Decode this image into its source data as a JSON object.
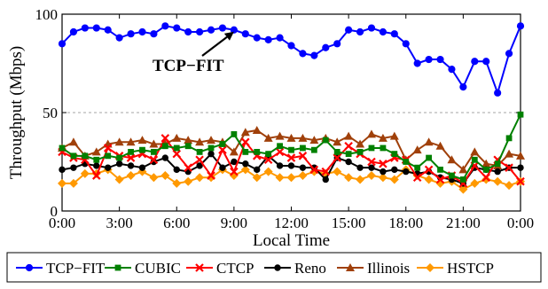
{
  "chart_data": {
    "type": "line",
    "xlabel": "Local Time",
    "ylabel": "Throughput (Mbps)",
    "xlim": [
      0,
      24
    ],
    "ylim": [
      0,
      100
    ],
    "x_ticks": [
      {
        "value": 0,
        "label": "0:00"
      },
      {
        "value": 3,
        "label": "3:00"
      },
      {
        "value": 6,
        "label": "6:00"
      },
      {
        "value": 9,
        "label": "9:00"
      },
      {
        "value": 12,
        "label": "12:00"
      },
      {
        "value": 15,
        "label": "15:00"
      },
      {
        "value": 18,
        "label": "18:00"
      },
      {
        "value": 21,
        "label": "21:00"
      },
      {
        "value": 24,
        "label": "0:00"
      }
    ],
    "y_ticks": [
      {
        "value": 0,
        "label": "0"
      },
      {
        "value": 50,
        "label": "50"
      },
      {
        "value": 100,
        "label": "100"
      }
    ],
    "grid": "y-dashed",
    "legend_placement": "bottom",
    "annotation": {
      "text": "TCP−FIT",
      "points_to": {
        "x": 9.0,
        "y": 92
      }
    },
    "x": [
      0.0,
      0.6,
      1.2,
      1.8,
      2.4,
      3.0,
      3.6,
      4.2,
      4.8,
      5.4,
      6.0,
      6.6,
      7.2,
      7.8,
      8.4,
      9.0,
      9.6,
      10.2,
      10.8,
      11.4,
      12.0,
      12.6,
      13.2,
      13.8,
      14.4,
      15.0,
      15.6,
      16.2,
      16.8,
      17.4,
      18.0,
      18.6,
      19.2,
      19.8,
      20.4,
      21.0,
      21.6,
      22.2,
      22.8,
      23.4,
      24.0
    ],
    "series": [
      {
        "name": "TCP−FIT",
        "color": "#0000ff",
        "marker": "circle",
        "values": [
          85,
          91,
          93,
          93,
          92,
          88,
          90,
          91,
          90,
          94,
          93,
          91,
          91,
          92,
          93,
          92,
          90,
          88,
          87,
          88,
          84,
          80,
          79,
          83,
          85,
          92,
          91,
          93,
          91,
          90,
          85,
          75,
          77,
          77,
          72,
          63,
          76,
          76,
          60,
          80,
          94
        ]
      },
      {
        "name": "CUBIC",
        "color": "#008000",
        "marker": "square",
        "values": [
          32,
          28,
          28,
          26,
          28,
          27,
          30,
          31,
          30,
          33,
          32,
          33,
          30,
          32,
          34,
          39,
          30,
          30,
          29,
          33,
          31,
          32,
          31,
          36,
          30,
          29,
          30,
          32,
          32,
          29,
          25,
          22,
          27,
          21,
          18,
          16,
          26,
          21,
          24,
          37,
          49
        ]
      },
      {
        "name": "CTCP",
        "color": "#ff0000",
        "marker": "x",
        "values": [
          30,
          27,
          26,
          18,
          32,
          28,
          27,
          29,
          26,
          37,
          29,
          22,
          26,
          18,
          31,
          20,
          35,
          28,
          26,
          30,
          27,
          28,
          21,
          20,
          27,
          33,
          29,
          25,
          24,
          27,
          26,
          17,
          21,
          16,
          18,
          14,
          23,
          17,
          26,
          22,
          15
        ]
      },
      {
        "name": "Reno",
        "color": "#000000",
        "marker": "dot",
        "values": [
          21,
          22,
          24,
          23,
          22,
          24,
          23,
          22,
          25,
          27,
          21,
          20,
          23,
          29,
          22,
          25,
          24,
          21,
          28,
          23,
          23,
          22,
          22,
          16,
          27,
          25,
          22,
          22,
          20,
          21,
          20,
          19,
          20,
          17,
          16,
          14,
          22,
          21,
          20,
          22,
          22
        ]
      },
      {
        "name": "Illinois",
        "color": "#a0400a",
        "marker": "triangle",
        "values": [
          32,
          35,
          28,
          30,
          34,
          35,
          35,
          36,
          34,
          34,
          37,
          36,
          35,
          36,
          35,
          30,
          40,
          41,
          37,
          38,
          37,
          37,
          36,
          37,
          35,
          38,
          34,
          39,
          37,
          38,
          26,
          31,
          35,
          33,
          26,
          21,
          30,
          24,
          23,
          29,
          28
        ]
      },
      {
        "name": "HSTCP",
        "color": "#ff9900",
        "marker": "diamond",
        "values": [
          14,
          14,
          19,
          19,
          21,
          16,
          18,
          20,
          17,
          18,
          14,
          15,
          17,
          17,
          21,
          18,
          21,
          17,
          20,
          17,
          17,
          18,
          20,
          19,
          20,
          17,
          16,
          18,
          17,
          16,
          21,
          18,
          16,
          14,
          15,
          11,
          14,
          16,
          15,
          13,
          15
        ]
      }
    ]
  }
}
